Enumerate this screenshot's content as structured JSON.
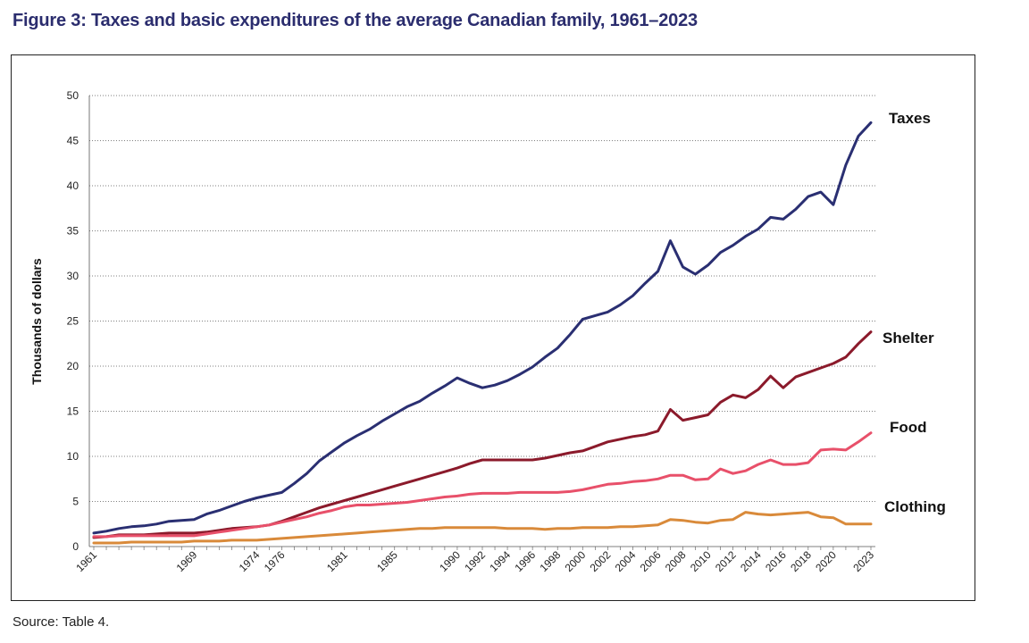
{
  "figure": {
    "title": "Figure 3: Taxes and basic expenditures of the average Canadian family, 1961–2023",
    "source": "Source: Table 4."
  },
  "chart_data": {
    "type": "line",
    "ylabel": "Thousands of dollars",
    "xlabel": "",
    "ylim": [
      0,
      50
    ],
    "yticks": [
      0,
      5,
      10,
      15,
      20,
      25,
      30,
      35,
      40,
      45,
      50
    ],
    "xtick_labels": [
      "1961",
      "1969",
      "1974",
      "1976",
      "1981",
      "1985",
      "1990",
      "1992",
      "1994",
      "1996",
      "1998",
      "2000",
      "2002",
      "2004",
      "2006",
      "2008",
      "2010",
      "2012",
      "2014",
      "2016",
      "2018",
      "2020",
      "2023"
    ],
    "grid": "horizontal-dotted",
    "legend": "inline-right",
    "x": [
      1961,
      1962,
      1963,
      1964,
      1965,
      1966,
      1967,
      1968,
      1969,
      1970,
      1971,
      1972,
      1973,
      1974,
      1975,
      1976,
      1977,
      1978,
      1979,
      1980,
      1981,
      1982,
      1983,
      1984,
      1985,
      1986,
      1987,
      1988,
      1989,
      1990,
      1991,
      1992,
      1993,
      1994,
      1995,
      1996,
      1997,
      1998,
      1999,
      2000,
      2001,
      2002,
      2003,
      2004,
      2005,
      2006,
      2007,
      2008,
      2009,
      2010,
      2011,
      2012,
      2013,
      2014,
      2015,
      2016,
      2017,
      2018,
      2019,
      2020,
      2021,
      2022,
      2023
    ],
    "series": [
      {
        "name": "Taxes",
        "color": "#2a2f72",
        "values": [
          1.5,
          1.7,
          2.0,
          2.2,
          2.3,
          2.5,
          2.8,
          2.9,
          3.0,
          3.6,
          4.0,
          4.5,
          5.0,
          5.4,
          5.7,
          6.0,
          7.0,
          8.1,
          9.5,
          10.5,
          11.5,
          12.3,
          13.0,
          13.9,
          14.7,
          15.5,
          16.1,
          17.0,
          17.8,
          18.7,
          18.1,
          17.6,
          17.9,
          18.4,
          19.1,
          19.9,
          21.0,
          22.0,
          23.5,
          25.2,
          25.6,
          26.0,
          26.8,
          27.8,
          29.2,
          30.5,
          33.9,
          31.0,
          30.2,
          31.2,
          32.6,
          33.4,
          34.4,
          35.2,
          36.5,
          36.3,
          37.4,
          38.8,
          39.3,
          37.9,
          42.3,
          45.5,
          47.0
        ]
      },
      {
        "name": "Shelter",
        "color": "#8b1a2b",
        "values": [
          1.0,
          1.1,
          1.3,
          1.3,
          1.3,
          1.4,
          1.5,
          1.5,
          1.5,
          1.6,
          1.8,
          2.0,
          2.1,
          2.2,
          2.4,
          2.8,
          3.3,
          3.8,
          4.3,
          4.7,
          5.1,
          5.5,
          5.9,
          6.3,
          6.7,
          7.1,
          7.5,
          7.9,
          8.3,
          8.7,
          9.2,
          9.6,
          9.6,
          9.6,
          9.6,
          9.6,
          9.8,
          10.1,
          10.4,
          10.6,
          11.1,
          11.6,
          11.9,
          12.2,
          12.4,
          12.8,
          15.2,
          14.0,
          14.3,
          14.6,
          16.0,
          16.8,
          16.5,
          17.4,
          18.9,
          17.6,
          18.8,
          19.3,
          19.8,
          20.3,
          21.0,
          22.5,
          23.8
        ]
      },
      {
        "name": "Food",
        "color": "#e8506a",
        "values": [
          1.1,
          1.1,
          1.2,
          1.2,
          1.2,
          1.2,
          1.2,
          1.2,
          1.2,
          1.4,
          1.6,
          1.8,
          2.0,
          2.2,
          2.4,
          2.7,
          3.0,
          3.3,
          3.7,
          4.0,
          4.4,
          4.6,
          4.6,
          4.7,
          4.8,
          4.9,
          5.1,
          5.3,
          5.5,
          5.6,
          5.8,
          5.9,
          5.9,
          5.9,
          6.0,
          6.0,
          6.0,
          6.0,
          6.1,
          6.3,
          6.6,
          6.9,
          7.0,
          7.2,
          7.3,
          7.5,
          7.9,
          7.9,
          7.4,
          7.5,
          8.6,
          8.1,
          8.4,
          9.1,
          9.6,
          9.1,
          9.1,
          9.3,
          10.7,
          10.8,
          10.7,
          11.6,
          12.6
        ]
      },
      {
        "name": "Clothing",
        "color": "#d98a3a",
        "values": [
          0.4,
          0.4,
          0.4,
          0.5,
          0.5,
          0.5,
          0.5,
          0.5,
          0.6,
          0.6,
          0.6,
          0.7,
          0.7,
          0.7,
          0.8,
          0.9,
          1.0,
          1.1,
          1.2,
          1.3,
          1.4,
          1.5,
          1.6,
          1.7,
          1.8,
          1.9,
          2.0,
          2.0,
          2.1,
          2.1,
          2.1,
          2.1,
          2.1,
          2.0,
          2.0,
          2.0,
          1.9,
          2.0,
          2.0,
          2.1,
          2.1,
          2.1,
          2.2,
          2.2,
          2.3,
          2.4,
          3.0,
          2.9,
          2.7,
          2.6,
          2.9,
          3.0,
          3.8,
          3.6,
          3.5,
          3.6,
          3.7,
          3.8,
          3.3,
          3.2,
          2.5,
          2.5,
          2.5
        ]
      }
    ]
  }
}
